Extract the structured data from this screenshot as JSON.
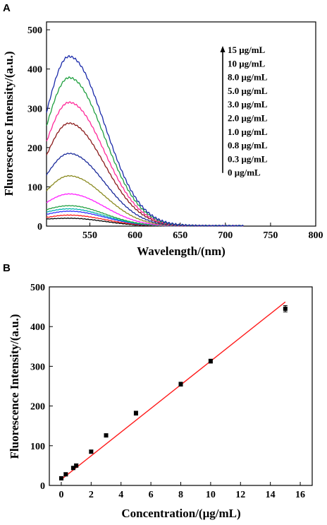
{
  "panels": [
    {
      "label": "A",
      "chart_data": {
        "type": "line",
        "xlabel": "Wavelength/(nm)",
        "ylabel": "Fluorescence Intensity/(a.u.)",
        "xlim": [
          502,
          800
        ],
        "ylim": [
          0,
          520
        ],
        "xticks": [
          550,
          600,
          650,
          700,
          750,
          800
        ],
        "yticks": [
          0,
          100,
          200,
          300,
          400,
          500
        ],
        "peak_wavelength": 527,
        "legend_placement": "right",
        "legend_arrow": "upward",
        "series": [
          {
            "name": "0 μg/mL",
            "peak": 20,
            "start": 18,
            "color": "#000000"
          },
          {
            "name": "0.3 μg/mL",
            "peak": 28,
            "start": 22,
            "color": "#ff2020"
          },
          {
            "name": "0.8 μg/mL",
            "peak": 38,
            "start": 30,
            "color": "#3030ff"
          },
          {
            "name": "1.0 μg/mL",
            "peak": 44,
            "start": 36,
            "color": "#00b0b0"
          },
          {
            "name": "2.0 μg/mL",
            "peak": 52,
            "start": 42,
            "color": "#20a040"
          },
          {
            "name": "3.0 μg/mL",
            "peak": 82,
            "start": 60,
            "color": "#ff20ff"
          },
          {
            "name": "5.0 μg/mL",
            "peak": 128,
            "start": 90,
            "color": "#8a8a20"
          },
          {
            "name": "8.0 μg/mL",
            "peak": 185,
            "start": 130,
            "color": "#1a2a9a"
          },
          {
            "name": "10 μg/mL",
            "peak": 262,
            "start": 180,
            "color": "#8a1a1a"
          },
          {
            "name": "15 μg/mL",
            "peak": 315,
            "start": 215,
            "color": "#ff2a9a"
          },
          {
            "name": "",
            "peak": 378,
            "start": 255,
            "color": "#20a040"
          },
          {
            "name": "",
            "peak": 432,
            "start": 290,
            "color": "#1a2aaa"
          }
        ]
      }
    },
    {
      "label": "B",
      "chart_data": {
        "type": "scatter",
        "xlabel": "Concentration/(μg/mL)",
        "ylabel": "Fluorescence Intensity/(a.u.)",
        "xlim": [
          -0.8,
          16.8
        ],
        "ylim": [
          0,
          500
        ],
        "xticks": [
          0,
          2,
          4,
          6,
          8,
          10,
          12,
          14,
          16
        ],
        "yticks": [
          0,
          100,
          200,
          300,
          400,
          500
        ],
        "points": [
          {
            "x": 0,
            "y": 18,
            "err": 4
          },
          {
            "x": 0.3,
            "y": 28,
            "err": 4
          },
          {
            "x": 0.8,
            "y": 44,
            "err": 4
          },
          {
            "x": 1.0,
            "y": 50,
            "err": 4
          },
          {
            "x": 2.0,
            "y": 85,
            "err": 4
          },
          {
            "x": 3.0,
            "y": 126,
            "err": 4
          },
          {
            "x": 5.0,
            "y": 182,
            "err": 5
          },
          {
            "x": 8.0,
            "y": 255,
            "err": 5
          },
          {
            "x": 10,
            "y": 313,
            "err": 5
          },
          {
            "x": 15,
            "y": 445,
            "err": 8
          }
        ],
        "fit_line": {
          "x": [
            0,
            15
          ],
          "y": [
            15,
            462
          ],
          "color": "#ff1a1a"
        }
      }
    }
  ],
  "colors": {
    "axis": "#000000",
    "marker": "#000000"
  }
}
